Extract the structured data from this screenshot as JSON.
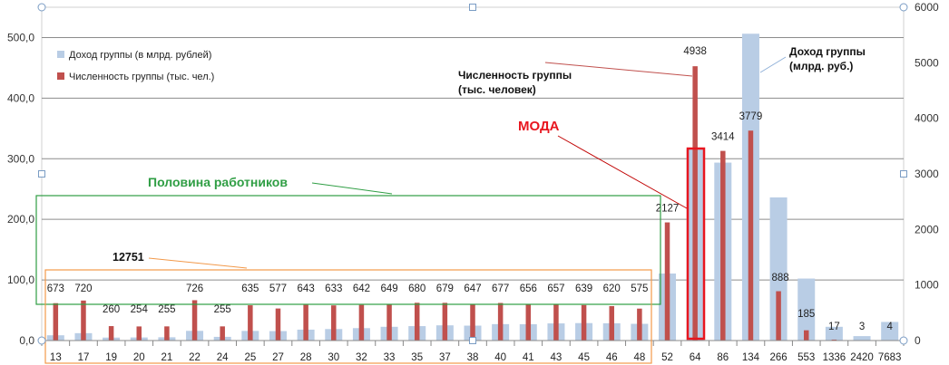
{
  "chart_data": {
    "type": "bar",
    "categories": [
      "13",
      "17",
      "19",
      "20",
      "21",
      "22",
      "24",
      "25",
      "27",
      "28",
      "30",
      "32",
      "33",
      "35",
      "37",
      "38",
      "40",
      "41",
      "43",
      "45",
      "46",
      "48",
      "52",
      "64",
      "86",
      "134",
      "266",
      "553",
      "1336",
      "2420",
      "7683"
    ],
    "series": [
      {
        "name": "Доход группы (в млрд. рублей)",
        "axis": "left",
        "color": "#b9cde5",
        "values": [
          8.7,
          12.2,
          4.9,
          5.1,
          5.4,
          16.0,
          6.1,
          15.9,
          15.6,
          18.0,
          19.0,
          20.5,
          22.7,
          23.8,
          25.1,
          24.6,
          27.1,
          26.9,
          28.3,
          28.8,
          28.5,
          27.6,
          110.6,
          316.0,
          293.6,
          506.3,
          236.2,
          102.3,
          22.7,
          7.3,
          30.7
        ]
      },
      {
        "name": "Численность группы (тыс. чел.)",
        "axis": "right",
        "color": "#c0504d",
        "values": [
          673,
          720,
          260,
          254,
          255,
          726,
          255,
          635,
          577,
          643,
          633,
          642,
          649,
          680,
          679,
          647,
          677,
          656,
          657,
          639,
          620,
          575,
          2127,
          4938,
          3414,
          3779,
          888,
          185,
          17,
          3,
          4
        ]
      }
    ],
    "bar_labels": [
      "673",
      "720",
      "260",
      "254",
      "255",
      "726",
      "255",
      "635",
      "577",
      "643",
      "633",
      "642",
      "649",
      "680",
      "679",
      "647",
      "677",
      "656",
      "657",
      "639",
      "620",
      "575",
      "2127",
      "4938",
      "3414",
      "3779",
      "888",
      "185",
      "17",
      "3",
      "4"
    ],
    "y_left": {
      "min": 0,
      "max": 550,
      "ticks": [
        0,
        100,
        200,
        300,
        400,
        500
      ],
      "tick_labels": [
        "0,0",
        "100,0",
        "200,0",
        "300,0",
        "400,0",
        "500,0"
      ]
    },
    "y_right": {
      "min": 0,
      "max": 6000,
      "ticks": [
        0,
        1000,
        2000,
        3000,
        4000,
        5000,
        6000
      ],
      "tick_labels": [
        "0",
        "1000",
        "2000",
        "3000",
        "4000",
        "5000",
        "6000"
      ]
    },
    "grid": true,
    "legend_position": "top-left",
    "annotations": {
      "headcount_label": [
        "Численность группы",
        "(тыс. человек)"
      ],
      "income_label": [
        "Доход группы",
        "(млрд. руб.)"
      ],
      "mode_label": "МОДА",
      "half_label": "Половина работников",
      "sum_label": "12751"
    },
    "colors": {
      "income": "#b9cde5",
      "headcount": "#c0504d",
      "mode_box": "#e8161f",
      "half_box": "#2f9e44",
      "sum_box": "#f2994a",
      "grid": "#8c8c8c"
    }
  }
}
